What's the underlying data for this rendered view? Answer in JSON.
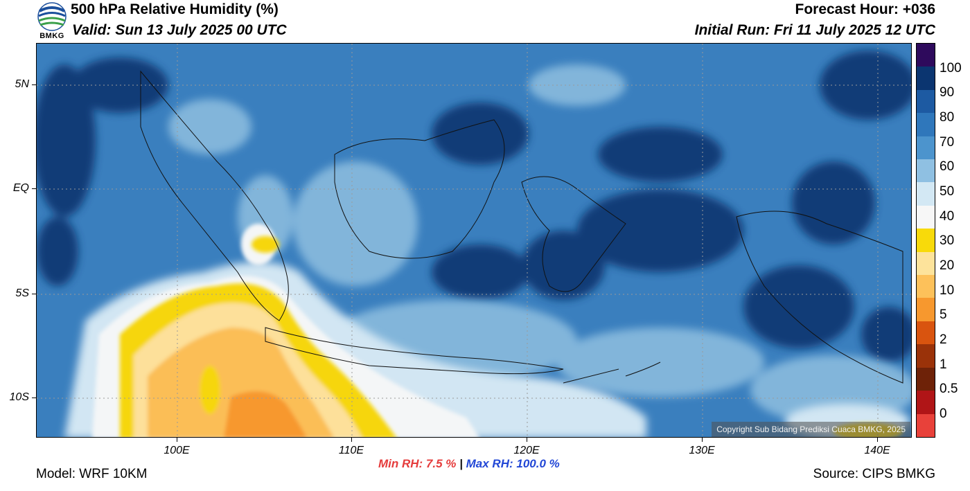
{
  "header": {
    "title": "500 hPa Relative Humidity (%)",
    "valid": "Valid: Sun 13 July 2025 00 UTC",
    "forecast_hour": "Forecast Hour: +036",
    "initial_run": "Initial Run: Fri 11 July 2025 12 UTC",
    "logo_text": "BMKG"
  },
  "map": {
    "lat_labels": [
      "5N",
      "EQ",
      "5S",
      "10S"
    ],
    "lon_labels": [
      "100E",
      "110E",
      "120E",
      "130E",
      "140E"
    ],
    "copyright": "Copyright Sub Bidang Prediksi Cuaca BMKG, 2025",
    "colors": {
      "ocean_background": "#3a7fbe",
      "very_moist": "#0b3570",
      "moist": "#1f5fa8",
      "moderate": "#8fbfe0",
      "dry_pale": "#d2e6f3",
      "white": "#f4f6f7",
      "yellow": "#f6d60a",
      "light_orange": "#fde09a",
      "orange": "#fbbe56",
      "deep_orange": "#f7982e"
    }
  },
  "colorbar": {
    "labels": [
      "100",
      "90",
      "80",
      "70",
      "60",
      "50",
      "40",
      "30",
      "20",
      "10",
      "5",
      "2",
      "1",
      "0.5",
      "0"
    ],
    "colors": [
      "#2e0a5c",
      "#0b3570",
      "#1d5aa2",
      "#2f77bb",
      "#4c94cd",
      "#8fc0e2",
      "#d3e8f4",
      "#f7f7f7",
      "#f8da0a",
      "#fde39b",
      "#fdc15a",
      "#f7982e",
      "#d9540f",
      "#9a3209",
      "#6e2208",
      "#b01517",
      "#e8413a"
    ]
  },
  "footer": {
    "model": "Model: WRF 10KM",
    "min_rh": "Min RH:   7.5 %",
    "separator": "|",
    "max_rh": "Max RH: 100.0 %",
    "source": "Source: CIPS BMKG"
  }
}
